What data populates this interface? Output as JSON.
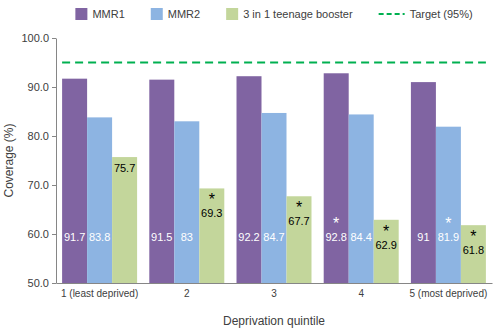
{
  "chart_data": {
    "type": "bar",
    "x_label": "Deprivation quintile",
    "y_label": "Coverage (%)",
    "categories": [
      "1 (least deprived)",
      "2",
      "3",
      "4",
      "5 (most deprived)"
    ],
    "series": [
      {
        "name": "MMR1",
        "color": "#8064A2",
        "values": [
          91.7,
          91.5,
          92.2,
          92.8,
          91.0
        ]
      },
      {
        "name": "MMR2",
        "color": "#8DB4E2",
        "values": [
          83.8,
          83.0,
          84.7,
          84.4,
          81.9
        ]
      },
      {
        "name": "3 in 1 teenage booster",
        "color": "#C3D69B",
        "values": [
          75.7,
          69.3,
          67.7,
          62.9,
          61.8
        ]
      }
    ],
    "target": {
      "name": "Target (95%)",
      "value": 95,
      "color": "#00B050",
      "line_style": "dashed"
    },
    "annotations": [
      {
        "text": "*",
        "series": "MMR1",
        "category": "4"
      },
      {
        "text": "*",
        "series": "MMR2",
        "category": "5 (most deprived)"
      },
      {
        "text": "*",
        "series": "3 in 1 teenage booster",
        "category": "2"
      },
      {
        "text": "*",
        "series": "3 in 1 teenage booster",
        "category": "3"
      },
      {
        "text": "*",
        "series": "3 in 1 teenage booster",
        "category": "4"
      },
      {
        "text": "*",
        "series": "3 in 1 teenage booster",
        "category": "5 (most deprived)"
      }
    ],
    "ylim": [
      50,
      100
    ],
    "yticks": [
      {
        "value": 50,
        "label": "50.0"
      },
      {
        "value": 60,
        "label": "60.0"
      },
      {
        "value": 70,
        "label": "70.0"
      },
      {
        "value": 80,
        "label": "80.0"
      },
      {
        "value": 90,
        "label": "90.0"
      },
      {
        "value": 100,
        "label": "100.0"
      }
    ],
    "data_labels": true,
    "grid": false,
    "legend": "top"
  }
}
